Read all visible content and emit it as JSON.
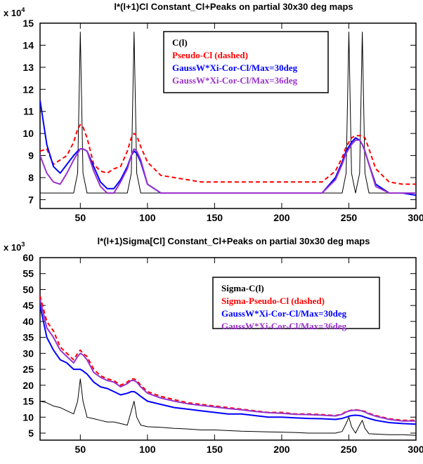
{
  "chart_data": [
    {
      "type": "line",
      "title": "l*(l+1)Cl Constant_Cl+Peaks on partial 30x30 deg maps",
      "y_scale_label": "x 10",
      "y_scale_exponent": "4",
      "x": [
        20,
        25,
        30,
        35,
        40,
        45,
        48,
        50,
        52,
        55,
        60,
        65,
        70,
        75,
        80,
        85,
        88,
        90,
        92,
        95,
        100,
        110,
        120,
        130,
        140,
        150,
        160,
        170,
        180,
        190,
        200,
        210,
        220,
        230,
        240,
        245,
        248,
        250,
        252,
        255,
        258,
        260,
        262,
        265,
        270,
        280,
        290,
        300
      ],
      "xlim": [
        20,
        300
      ],
      "xticks": [
        50,
        100,
        150,
        200,
        250,
        300
      ],
      "ylim": [
        6.6,
        15
      ],
      "yticks": [
        7,
        8,
        9,
        10,
        11,
        12,
        13,
        14,
        15
      ],
      "series": [
        {
          "name": "C(l)",
          "color": "#000000",
          "line_style": "solid",
          "width": 1,
          "values": [
            7.3,
            7.3,
            7.3,
            7.3,
            7.3,
            7.3,
            8.2,
            14.6,
            8.2,
            7.3,
            7.3,
            7.3,
            7.3,
            7.3,
            7.3,
            7.3,
            8.2,
            14.6,
            8.2,
            7.3,
            7.3,
            7.3,
            7.3,
            7.3,
            7.3,
            7.3,
            7.3,
            7.3,
            7.3,
            7.3,
            7.3,
            7.3,
            7.3,
            7.3,
            7.3,
            7.3,
            8.2,
            14.6,
            8.2,
            7.3,
            8.2,
            14.6,
            8.2,
            7.3,
            7.3,
            7.3,
            7.3,
            7.3
          ]
        },
        {
          "name": "Pseudo-Cl (dashed)",
          "color": "#ff0000",
          "line_style": "dashed",
          "width": 2,
          "values": [
            9.2,
            9.3,
            8.6,
            8.8,
            9.0,
            9.6,
            10.2,
            10.4,
            10.3,
            9.8,
            8.6,
            8.3,
            8.2,
            8.4,
            8.5,
            9.2,
            9.8,
            10.0,
            9.9,
            9.4,
            8.7,
            8.1,
            8.0,
            7.9,
            7.8,
            7.8,
            7.8,
            7.8,
            7.8,
            7.8,
            7.8,
            7.8,
            7.8,
            7.8,
            8.3,
            8.9,
            9.4,
            9.6,
            9.8,
            9.9,
            9.9,
            9.9,
            9.8,
            9.3,
            8.4,
            7.8,
            7.7,
            7.7
          ]
        },
        {
          "name": "GaussW*Xi-Cor-Cl/Max=30deg",
          "color": "#0000ff",
          "line_style": "solid",
          "width": 2,
          "values": [
            11.5,
            9.5,
            8.5,
            8.2,
            8.6,
            9.0,
            9.2,
            9.3,
            9.3,
            9.2,
            8.5,
            7.8,
            7.5,
            7.5,
            7.9,
            8.5,
            9.0,
            9.2,
            9.1,
            8.7,
            7.7,
            7.3,
            7.3,
            7.3,
            7.3,
            7.3,
            7.3,
            7.3,
            7.3,
            7.3,
            7.3,
            7.3,
            7.3,
            7.3,
            8.0,
            8.7,
            9.2,
            9.4,
            9.6,
            9.8,
            9.7,
            9.5,
            9.2,
            8.6,
            7.7,
            7.3,
            7.3,
            7.2
          ]
        },
        {
          "name": "GaussW*Xi-Cor-Cl/Max=36deg",
          "color": "#9932cc",
          "line_style": "solid",
          "width": 2,
          "values": [
            9.0,
            8.2,
            7.8,
            7.7,
            8.2,
            8.8,
            9.1,
            9.3,
            9.3,
            9.2,
            8.3,
            7.6,
            7.3,
            7.3,
            7.8,
            8.4,
            9.0,
            9.3,
            9.2,
            8.8,
            7.7,
            7.3,
            7.3,
            7.3,
            7.3,
            7.3,
            7.3,
            7.3,
            7.3,
            7.3,
            7.3,
            7.3,
            7.3,
            7.3,
            7.9,
            8.6,
            9.1,
            9.3,
            9.5,
            9.7,
            9.7,
            9.5,
            9.2,
            8.6,
            7.6,
            7.3,
            7.3,
            7.3
          ]
        }
      ]
    },
    {
      "type": "line",
      "title": "l*(l+1)Sigma[Cl] Constant_Cl+Peaks on partial 30x30 deg maps",
      "y_scale_label": "x 10",
      "y_scale_exponent": "3",
      "x": [
        20,
        25,
        30,
        35,
        40,
        45,
        48,
        50,
        52,
        55,
        60,
        65,
        70,
        75,
        80,
        85,
        88,
        90,
        92,
        95,
        100,
        110,
        120,
        130,
        140,
        150,
        160,
        170,
        180,
        190,
        200,
        210,
        220,
        230,
        240,
        245,
        248,
        250,
        252,
        255,
        258,
        260,
        262,
        265,
        270,
        280,
        290,
        300
      ],
      "xlim": [
        20,
        300
      ],
      "xticks": [
        50,
        100,
        150,
        200,
        250,
        300
      ],
      "ylim": [
        2.8,
        60
      ],
      "yticks": [
        5,
        10,
        15,
        20,
        25,
        30,
        35,
        40,
        45,
        50,
        55,
        60
      ],
      "series": [
        {
          "name": "Sigma-C(l)",
          "color": "#000000",
          "line_style": "solid",
          "width": 1,
          "values": [
            15,
            14.5,
            13.5,
            13,
            12,
            11,
            15,
            22,
            15,
            10,
            9.5,
            9,
            8.5,
            8.5,
            8,
            7.5,
            12,
            15,
            10,
            7.5,
            7,
            6.8,
            6.5,
            6.3,
            6,
            6,
            5.8,
            5.6,
            5.5,
            5.4,
            5.3,
            5.2,
            5,
            5,
            5,
            5.5,
            8,
            10,
            7,
            5,
            7.5,
            9,
            6.5,
            4.8,
            4.7,
            4.5,
            4.5,
            4.3
          ]
        },
        {
          "name": "Sigma-Pseudo-Cl (dashed)",
          "color": "#ff0000",
          "line_style": "dashed",
          "width": 2,
          "values": [
            48,
            40,
            37,
            32,
            30,
            28,
            30,
            31,
            30,
            29,
            25,
            23,
            22,
            21.5,
            20,
            21,
            22,
            22,
            21.5,
            20,
            18,
            16.5,
            15.5,
            14.5,
            14,
            13.5,
            13,
            12.5,
            12,
            11.5,
            11.5,
            11,
            11,
            10.8,
            10.5,
            11,
            11.8,
            12,
            12.2,
            12.3,
            12.2,
            12,
            11.8,
            11.2,
            10.5,
            9.5,
            9,
            9
          ]
        },
        {
          "name": "GaussW*Xi-Cor-Cl/Max=30deg",
          "color": "#0000ff",
          "line_style": "solid",
          "width": 2,
          "values": [
            45,
            35,
            31,
            28,
            27,
            25,
            25,
            25,
            24.5,
            23.5,
            21,
            19.5,
            19,
            18,
            17,
            17.5,
            18,
            18,
            17.5,
            16.5,
            15,
            14,
            13,
            12.5,
            12,
            11.5,
            11,
            11,
            10.5,
            10,
            10,
            9.8,
            9.6,
            9.5,
            9.3,
            9.6,
            10,
            10.3,
            10.5,
            10.6,
            10.5,
            10.3,
            10,
            9.6,
            9,
            8.3,
            8,
            7.8
          ]
        },
        {
          "name": "GaussW*Xi-Cor-Cl/Max=36deg",
          "color": "#9932cc",
          "line_style": "solid",
          "width": 2,
          "values": [
            47,
            38,
            35,
            31,
            29,
            27,
            29,
            30,
            29.5,
            28,
            24,
            22.5,
            21.5,
            21,
            19.5,
            20.5,
            21.5,
            21.5,
            21,
            19.5,
            17.5,
            16,
            15,
            14.2,
            13.7,
            13.2,
            12.7,
            12.3,
            11.8,
            11.4,
            11.2,
            10.9,
            10.8,
            10.6,
            10.4,
            10.9,
            11.6,
            11.9,
            12.1,
            12.2,
            12.1,
            11.9,
            11.6,
            11,
            10.3,
            9.3,
            8.8,
            8.8
          ]
        }
      ]
    }
  ]
}
